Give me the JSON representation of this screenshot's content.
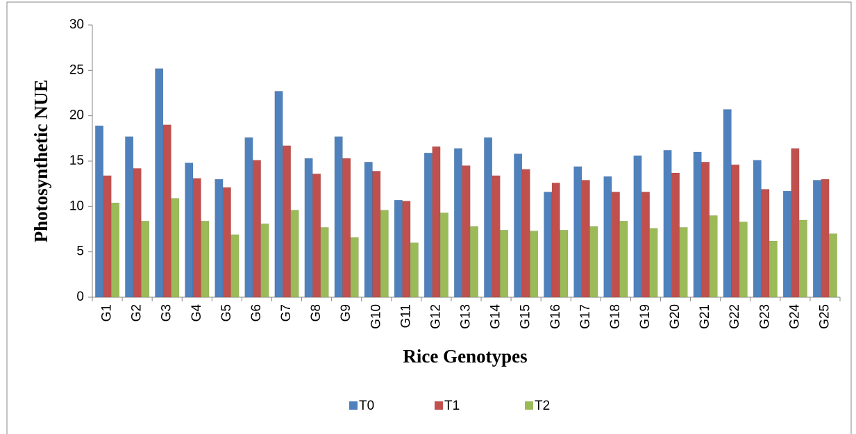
{
  "chart_data": {
    "type": "bar",
    "x_label": "Rice Genotypes",
    "y_label": "Photosynthetic NUE",
    "categories": [
      "G1",
      "G2",
      "G3",
      "G4",
      "G5",
      "G6",
      "G7",
      "G8",
      "G9",
      "G10",
      "G11",
      "G12",
      "G13",
      "G14",
      "G15",
      "G16",
      "G17",
      "G18",
      "G19",
      "G20",
      "G21",
      "G22",
      "G23",
      "G24",
      "G25"
    ],
    "series": [
      {
        "name": "T0",
        "color": "#4f81bd",
        "values": [
          18.9,
          17.7,
          25.2,
          14.8,
          13.0,
          17.6,
          22.7,
          15.3,
          17.7,
          14.9,
          10.7,
          15.9,
          16.4,
          17.6,
          15.8,
          11.6,
          14.4,
          13.3,
          15.6,
          16.2,
          16.0,
          20.7,
          15.1,
          11.7,
          12.9
        ]
      },
      {
        "name": "T1",
        "color": "#c0504d",
        "values": [
          13.4,
          14.2,
          19.0,
          13.1,
          12.1,
          15.1,
          16.7,
          13.6,
          15.3,
          13.9,
          10.6,
          16.6,
          14.5,
          13.4,
          14.1,
          12.6,
          12.9,
          11.6,
          11.6,
          13.7,
          14.9,
          14.6,
          11.9,
          16.4,
          13.0
        ]
      },
      {
        "name": "T2",
        "color": "#9bbb59",
        "values": [
          10.4,
          8.4,
          10.9,
          8.4,
          6.9,
          8.1,
          9.6,
          7.7,
          6.6,
          9.6,
          6.0,
          9.3,
          7.8,
          7.4,
          7.3,
          7.4,
          7.8,
          8.4,
          7.6,
          7.7,
          9.0,
          8.3,
          6.2,
          8.5,
          7.0
        ]
      }
    ],
    "ylim": [
      0,
      30
    ],
    "yticks": [
      0,
      5,
      10,
      15,
      20,
      25,
      30
    ],
    "grid": false,
    "legend": "bottom"
  }
}
